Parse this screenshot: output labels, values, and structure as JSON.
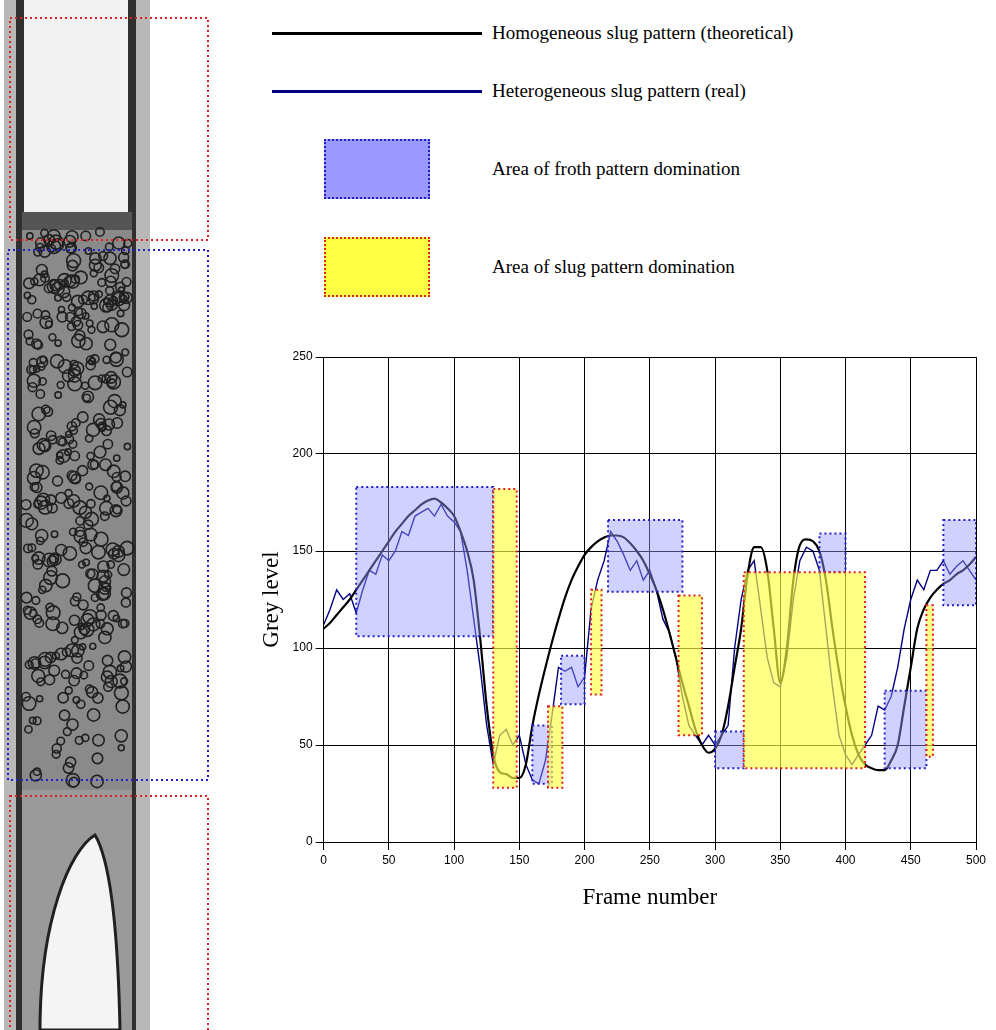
{
  "chart_data": {
    "type": "line",
    "x_label": "Frame number",
    "y_label": "Grey level",
    "xlim": [
      0,
      500
    ],
    "xticks": [
      0,
      50,
      100,
      150,
      200,
      250,
      300,
      350,
      400,
      450,
      500
    ],
    "ylim": [
      0,
      250
    ],
    "yticks": [
      0,
      50,
      100,
      150,
      200,
      250
    ],
    "grid": true,
    "legend": "top",
    "x": [
      0,
      5,
      10,
      15,
      20,
      25,
      30,
      35,
      40,
      45,
      50,
      55,
      60,
      65,
      70,
      75,
      80,
      85,
      90,
      95,
      100,
      105,
      110,
      115,
      120,
      125,
      130,
      135,
      140,
      145,
      150,
      155,
      160,
      165,
      170,
      175,
      180,
      185,
      190,
      195,
      200,
      205,
      210,
      215,
      220,
      225,
      230,
      235,
      240,
      245,
      250,
      255,
      260,
      265,
      270,
      275,
      280,
      285,
      290,
      295,
      300,
      305,
      310,
      315,
      320,
      325,
      330,
      335,
      340,
      345,
      350,
      355,
      360,
      365,
      370,
      375,
      380,
      385,
      390,
      395,
      400,
      405,
      410,
      415,
      420,
      425,
      430,
      435,
      440,
      445,
      450,
      455,
      460,
      465,
      470,
      475,
      480,
      485,
      490,
      495,
      500
    ],
    "series": [
      {
        "name": "Homogeneous slug pattern (theoretical)",
        "type": "line",
        "line_style": "smooth",
        "color": "#000000",
        "values": [
          110,
          113,
          117,
          121,
          125,
          130,
          135,
          140,
          145,
          150,
          155,
          160,
          164,
          168,
          171,
          174,
          176,
          177,
          175,
          172,
          168,
          160,
          150,
          135,
          105,
          70,
          45,
          36,
          35,
          33,
          33,
          40,
          60,
          76,
          90,
          103,
          115,
          126,
          135,
          142,
          148,
          152,
          155,
          157,
          158,
          158,
          157,
          154,
          150,
          145,
          138,
          130,
          120,
          108,
          95,
          82,
          70,
          58,
          50,
          46,
          48,
          55,
          70,
          90,
          110,
          138,
          152,
          152,
          140,
          110,
          82,
          100,
          135,
          153,
          156,
          155,
          150,
          135,
          110,
          88,
          70,
          55,
          45,
          40,
          38,
          37,
          37,
          42,
          50,
          70,
          90,
          110,
          120,
          126,
          130,
          133,
          135,
          138,
          140,
          143,
          147
        ]
      },
      {
        "name": "Heterogeneous slug pattern (real)",
        "type": "line",
        "line_style": "solid",
        "color": "#000080",
        "values": [
          112,
          120,
          130,
          125,
          128,
          118,
          130,
          140,
          138,
          148,
          145,
          150,
          160,
          158,
          168,
          170,
          172,
          168,
          174,
          168,
          165,
          160,
          140,
          115,
          90,
          60,
          40,
          55,
          58,
          50,
          55,
          40,
          32,
          30,
          42,
          65,
          90,
          88,
          90,
          80,
          85,
          120,
          135,
          145,
          160,
          155,
          148,
          140,
          145,
          135,
          140,
          130,
          115,
          108,
          95,
          75,
          60,
          55,
          50,
          55,
          50,
          55,
          60,
          100,
          125,
          140,
          145,
          120,
          95,
          82,
          80,
          95,
          125,
          145,
          152,
          150,
          140,
          110,
          80,
          55,
          45,
          40,
          45,
          50,
          55,
          70,
          68,
          75,
          90,
          110,
          125,
          135,
          130,
          140,
          140,
          145,
          138,
          142,
          145,
          140,
          135
        ]
      },
      {
        "name": "Area of froth pattern domination",
        "type": "box",
        "color": "#9999ff",
        "boxes": [
          {
            "x": [
              25,
              130
            ],
            "y": [
              106,
              183
            ]
          },
          {
            "x": [
              160,
              175
            ],
            "y": [
              30,
              60
            ]
          },
          {
            "x": [
              182,
              200
            ],
            "y": [
              71,
              96
            ]
          },
          {
            "x": [
              218,
              275
            ],
            "y": [
              129,
              166
            ]
          },
          {
            "x": [
              300,
              322
            ],
            "y": [
              38,
              57
            ]
          },
          {
            "x": [
              380,
              400
            ],
            "y": [
              139,
              159
            ]
          },
          {
            "x": [
              430,
              462
            ],
            "y": [
              38,
              78
            ]
          },
          {
            "x": [
              475,
              500
            ],
            "y": [
              122,
              166
            ]
          }
        ]
      },
      {
        "name": "Area of slug pattern domination",
        "type": "box",
        "color": "#ffff44",
        "boxes": [
          {
            "x": [
              130,
              148
            ],
            "y": [
              28,
              182
            ]
          },
          {
            "x": [
              172,
              183
            ],
            "y": [
              28,
              70
            ]
          },
          {
            "x": [
              205,
              213
            ],
            "y": [
              76,
              130
            ]
          },
          {
            "x": [
              272,
              290
            ],
            "y": [
              55,
              127
            ]
          },
          {
            "x": [
              322,
              415
            ],
            "y": [
              38,
              139
            ]
          },
          {
            "x": [
              462,
              467
            ],
            "y": [
              44,
              122
            ]
          }
        ]
      }
    ]
  }
}
